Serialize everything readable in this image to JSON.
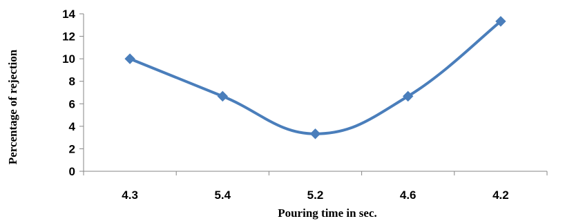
{
  "chart_data": {
    "type": "line",
    "title": "",
    "xlabel": "Pouring time  in sec.",
    "ylabel": "Percentage of rejection",
    "categories": [
      "4.3",
      "5.4",
      "5.2",
      "4.6",
      "4.2"
    ],
    "series": [
      {
        "values": [
          10,
          6.67,
          3.33,
          6.67,
          13.33
        ],
        "color": "#4a7ebb",
        "marker": "diamond",
        "smooth": true
      }
    ],
    "ylim": [
      0,
      14
    ],
    "yticks": [
      "0",
      "2",
      "4",
      "6",
      "8",
      "10",
      "12",
      "14"
    ],
    "grid": false,
    "legend": "none"
  }
}
